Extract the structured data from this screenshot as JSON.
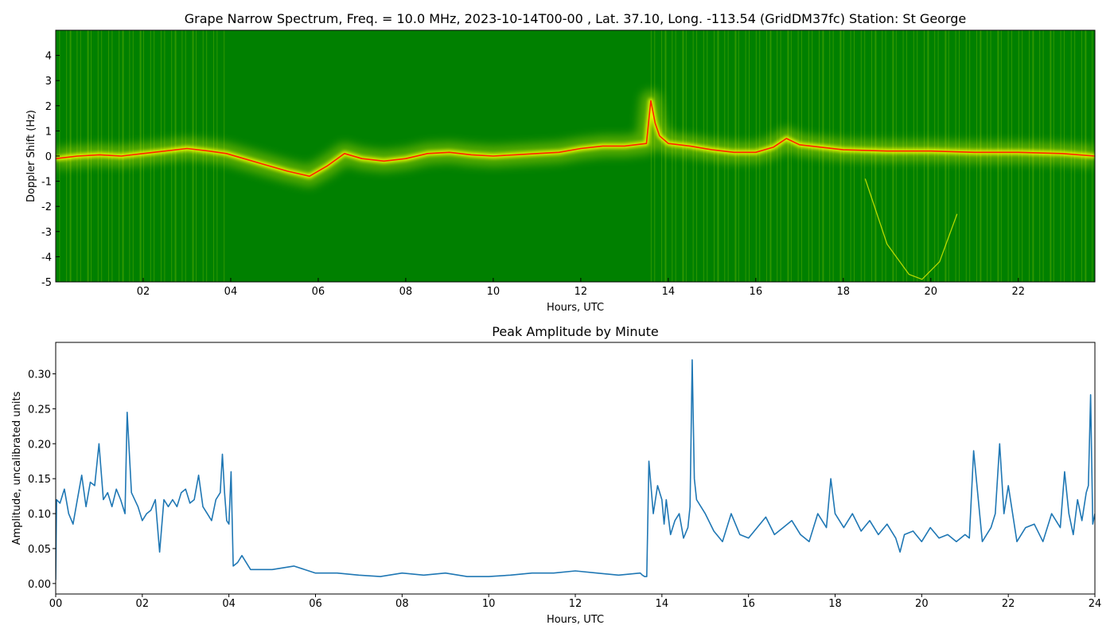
{
  "chart_data": [
    {
      "type": "heatmap",
      "title": "Grape Narrow Spectrum, Freq. = 10.0 MHz, 2023-10-14T00-00 , Lat.  37.10, Long. -113.54 (GridDM37fc) Station: St George",
      "xlabel": "Hours, UTC",
      "ylabel": "Doppler Shift (Hz)",
      "xlim": [
        0,
        23.75
      ],
      "ylim": [
        -5,
        5
      ],
      "x_ticks": [
        2,
        4,
        6,
        8,
        10,
        12,
        14,
        16,
        18,
        20,
        22
      ],
      "x_tick_labels": [
        "02",
        "04",
        "06",
        "08",
        "10",
        "12",
        "14",
        "16",
        "18",
        "20",
        "22"
      ],
      "y_ticks": [
        -5,
        -4,
        -3,
        -2,
        -1,
        0,
        1,
        2,
        3,
        4
      ],
      "y_tick_labels": [
        "-5",
        "-4",
        "-3",
        "-2",
        "-1",
        "0",
        "1",
        "2",
        "3",
        "4"
      ],
      "colors": {
        "background": "#008000",
        "signal": "#ffff00",
        "peak": "#ff2200"
      },
      "ridge": {
        "x": [
          0,
          0.5,
          1,
          1.5,
          2,
          2.5,
          3,
          3.5,
          3.9,
          4.3,
          4.8,
          5.3,
          5.8,
          6.2,
          6.6,
          7,
          7.5,
          8,
          8.5,
          9,
          9.5,
          10,
          10.5,
          11,
          11.5,
          12,
          12.5,
          13,
          13.5,
          13.6,
          13.7,
          13.8,
          14,
          14.5,
          15,
          15.5,
          16,
          16.4,
          16.7,
          17,
          17.5,
          18,
          19,
          20,
          21,
          22,
          23,
          23.75
        ],
        "y": [
          -0.1,
          0.0,
          0.05,
          0.0,
          0.1,
          0.2,
          0.3,
          0.2,
          0.1,
          -0.1,
          -0.35,
          -0.6,
          -0.8,
          -0.4,
          0.1,
          -0.1,
          -0.2,
          -0.1,
          0.1,
          0.15,
          0.05,
          0.0,
          0.05,
          0.1,
          0.15,
          0.3,
          0.4,
          0.4,
          0.5,
          2.2,
          1.3,
          0.8,
          0.5,
          0.4,
          0.25,
          0.15,
          0.15,
          0.35,
          0.7,
          0.45,
          0.35,
          0.25,
          0.2,
          0.2,
          0.15,
          0.15,
          0.1,
          0.0
        ]
      },
      "bright_segments": [
        [
          0,
          3.9
        ],
        [
          13.6,
          23.75
        ]
      ],
      "arc": {
        "x": [
          18.5,
          19,
          19.5,
          19.8,
          20.2,
          20.6
        ],
        "y": [
          -0.9,
          -3.5,
          -4.7,
          -4.9,
          -4.2,
          -2.3
        ]
      }
    },
    {
      "type": "line",
      "title": "Peak Amplitude by Minute",
      "xlabel": "Hours, UTC",
      "ylabel": "Amplitude, uncalibrated units",
      "xlim": [
        0,
        24
      ],
      "ylim": [
        -0.015,
        0.345
      ],
      "x_ticks": [
        0,
        2,
        4,
        6,
        8,
        10,
        12,
        14,
        16,
        18,
        20,
        22,
        24
      ],
      "x_tick_labels": [
        "00",
        "02",
        "04",
        "06",
        "08",
        "10",
        "12",
        "14",
        "16",
        "18",
        "20",
        "22",
        "24"
      ],
      "y_ticks": [
        0,
        0.05,
        0.1,
        0.15,
        0.2,
        0.25,
        0.3
      ],
      "y_tick_labels": [
        "0.00",
        "0.05",
        "0.10",
        "0.15",
        "0.20",
        "0.25",
        "0.30"
      ],
      "line_color": "#1f77b4",
      "x": [
        0,
        0.02,
        0.1,
        0.2,
        0.3,
        0.4,
        0.5,
        0.6,
        0.7,
        0.8,
        0.9,
        1.0,
        1.1,
        1.2,
        1.3,
        1.4,
        1.5,
        1.6,
        1.65,
        1.75,
        1.9,
        2.0,
        2.1,
        2.2,
        2.3,
        2.4,
        2.5,
        2.6,
        2.7,
        2.8,
        2.9,
        3.0,
        3.1,
        3.2,
        3.3,
        3.4,
        3.5,
        3.6,
        3.7,
        3.8,
        3.85,
        3.9,
        3.95,
        4.0,
        4.05,
        4.1,
        4.2,
        4.3,
        4.5,
        5.0,
        5.5,
        6.0,
        6.5,
        7.0,
        7.5,
        8.0,
        8.5,
        9.0,
        9.5,
        10.0,
        10.5,
        11.0,
        11.5,
        12.0,
        12.5,
        13.0,
        13.5,
        13.55,
        13.6,
        13.65,
        13.7,
        13.8,
        13.9,
        14.0,
        14.05,
        14.1,
        14.2,
        14.3,
        14.4,
        14.5,
        14.6,
        14.65,
        14.7,
        14.75,
        14.8,
        15.0,
        15.2,
        15.4,
        15.6,
        15.8,
        16.0,
        16.2,
        16.4,
        16.6,
        16.8,
        17.0,
        17.2,
        17.4,
        17.6,
        17.8,
        17.9,
        18.0,
        18.2,
        18.4,
        18.6,
        18.8,
        19.0,
        19.2,
        19.4,
        19.5,
        19.6,
        19.8,
        20.0,
        20.2,
        20.4,
        20.6,
        20.8,
        21.0,
        21.1,
        21.2,
        21.4,
        21.6,
        21.7,
        21.8,
        21.9,
        22.0,
        22.2,
        22.4,
        22.6,
        22.8,
        23.0,
        23.2,
        23.3,
        23.4,
        23.5,
        23.6,
        23.7,
        23.8,
        23.85,
        23.9,
        23.95,
        24.0
      ],
      "y": [
        0.005,
        0.12,
        0.115,
        0.135,
        0.1,
        0.085,
        0.12,
        0.155,
        0.11,
        0.145,
        0.14,
        0.2,
        0.12,
        0.13,
        0.11,
        0.135,
        0.12,
        0.1,
        0.245,
        0.13,
        0.11,
        0.09,
        0.1,
        0.105,
        0.12,
        0.045,
        0.12,
        0.11,
        0.12,
        0.11,
        0.13,
        0.135,
        0.115,
        0.12,
        0.155,
        0.11,
        0.1,
        0.09,
        0.12,
        0.13,
        0.185,
        0.13,
        0.09,
        0.085,
        0.16,
        0.025,
        0.03,
        0.04,
        0.02,
        0.02,
        0.025,
        0.015,
        0.015,
        0.012,
        0.01,
        0.015,
        0.012,
        0.015,
        0.01,
        0.01,
        0.012,
        0.015,
        0.015,
        0.018,
        0.015,
        0.012,
        0.015,
        0.012,
        0.01,
        0.01,
        0.175,
        0.1,
        0.14,
        0.12,
        0.085,
        0.12,
        0.07,
        0.09,
        0.1,
        0.065,
        0.08,
        0.11,
        0.32,
        0.15,
        0.12,
        0.1,
        0.075,
        0.06,
        0.1,
        0.07,
        0.065,
        0.08,
        0.095,
        0.07,
        0.08,
        0.09,
        0.07,
        0.06,
        0.1,
        0.08,
        0.15,
        0.1,
        0.08,
        0.1,
        0.075,
        0.09,
        0.07,
        0.085,
        0.065,
        0.045,
        0.07,
        0.075,
        0.06,
        0.08,
        0.065,
        0.07,
        0.06,
        0.07,
        0.065,
        0.19,
        0.06,
        0.08,
        0.1,
        0.2,
        0.1,
        0.14,
        0.06,
        0.08,
        0.085,
        0.06,
        0.1,
        0.08,
        0.16,
        0.1,
        0.07,
        0.12,
        0.09,
        0.13,
        0.14,
        0.27,
        0.085,
        0.1
      ]
    }
  ]
}
